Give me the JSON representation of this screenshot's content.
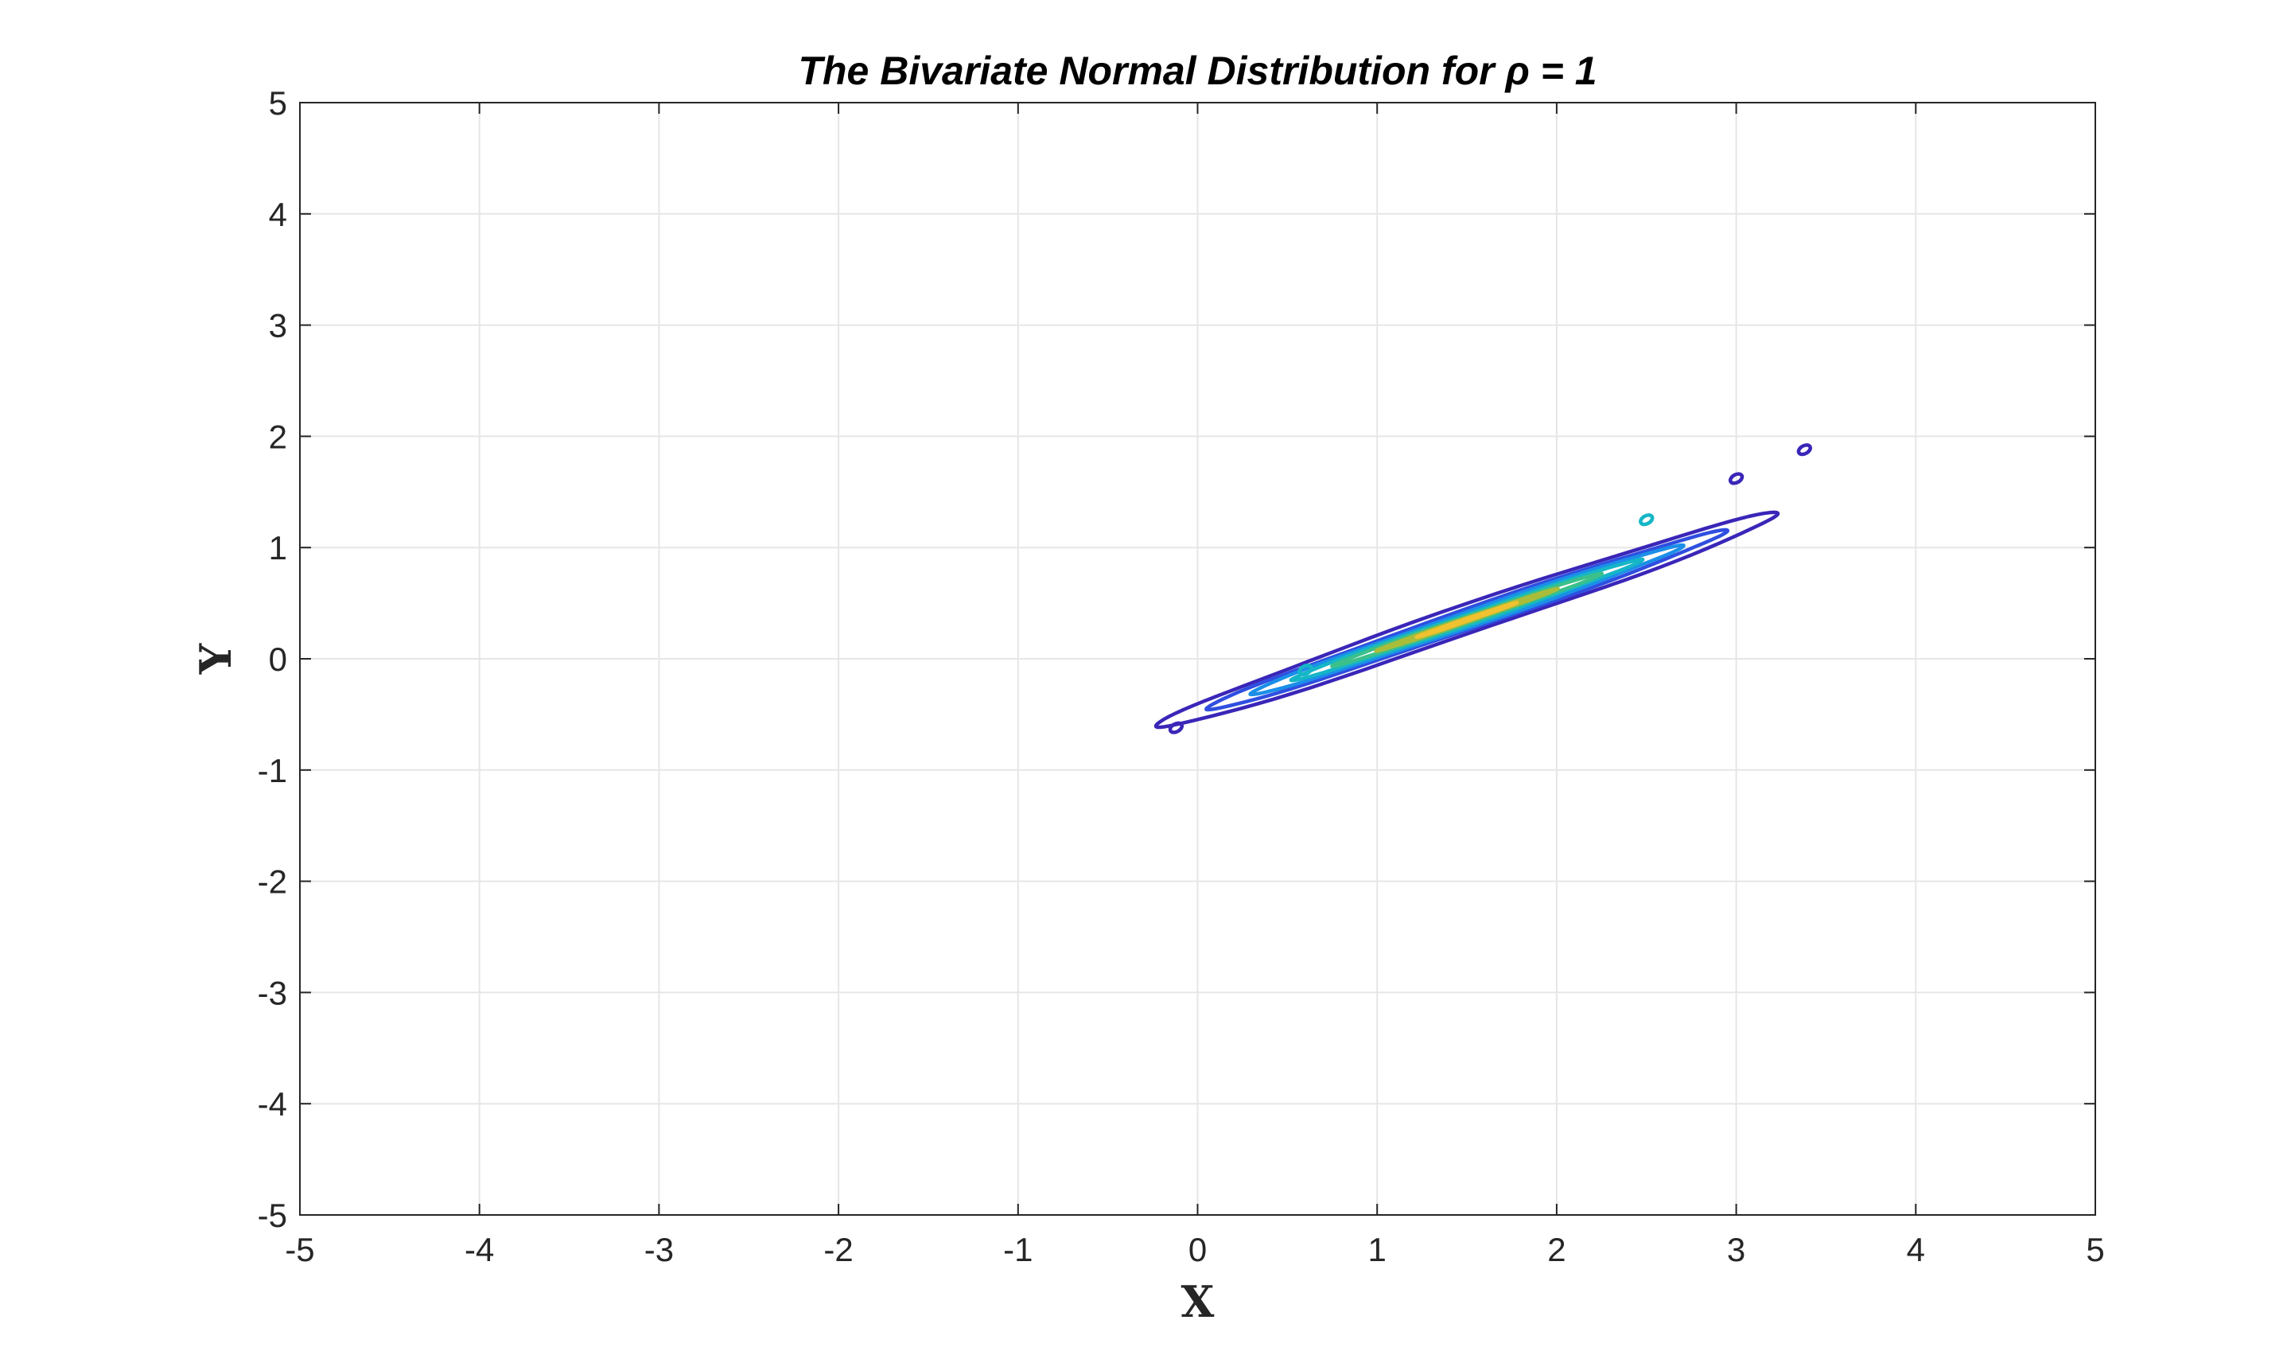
{
  "chart_data": {
    "type": "contour",
    "title": "The Bivariate Normal Distribution for ρ = 1",
    "xlabel": "X",
    "ylabel": "Y",
    "xlim": [
      -5,
      5
    ],
    "ylim": [
      -5,
      5
    ],
    "xticks": [
      -5,
      -4,
      -3,
      -2,
      -1,
      0,
      1,
      2,
      3,
      4,
      5
    ],
    "yticks": [
      -5,
      -4,
      -3,
      -2,
      -1,
      0,
      1,
      2,
      3,
      4,
      5
    ],
    "grid": true,
    "colormap": "parula",
    "center": [
      1.5,
      0.35
    ],
    "direction_deg": 29,
    "levels": [
      {
        "id": "level-1",
        "half_length": 1.98,
        "half_width": 0.12,
        "color": "#3a26b8"
      },
      {
        "id": "level-2",
        "half_length": 1.66,
        "half_width": 0.085,
        "color": "#2f4fe0"
      },
      {
        "id": "level-3",
        "half_length": 1.38,
        "half_width": 0.065,
        "color": "#1b8fe8"
      },
      {
        "id": "level-4",
        "half_length": 1.12,
        "half_width": 0.045,
        "color": "#15b6c6"
      },
      {
        "id": "level-5",
        "half_length": 0.86,
        "half_width": 0.03,
        "color": "#3cc08a"
      },
      {
        "id": "level-6",
        "half_length": 0.58,
        "half_width": 0.018,
        "color": "#a9bd3a"
      },
      {
        "id": "level-7",
        "half_length": 0.32,
        "half_width": 0.009,
        "color": "#f0c230"
      }
    ],
    "islands": [
      {
        "x": -0.12,
        "y": -0.62,
        "color": "#3a26b8"
      },
      {
        "x": 3.0,
        "y": 1.62,
        "color": "#3a26b8"
      },
      {
        "x": 3.38,
        "y": 1.88,
        "color": "#3a26b8"
      },
      {
        "x": 0.6,
        "y": -0.1,
        "color": "#15b6c6"
      },
      {
        "x": 2.5,
        "y": 1.25,
        "color": "#15b6c6"
      }
    ]
  }
}
